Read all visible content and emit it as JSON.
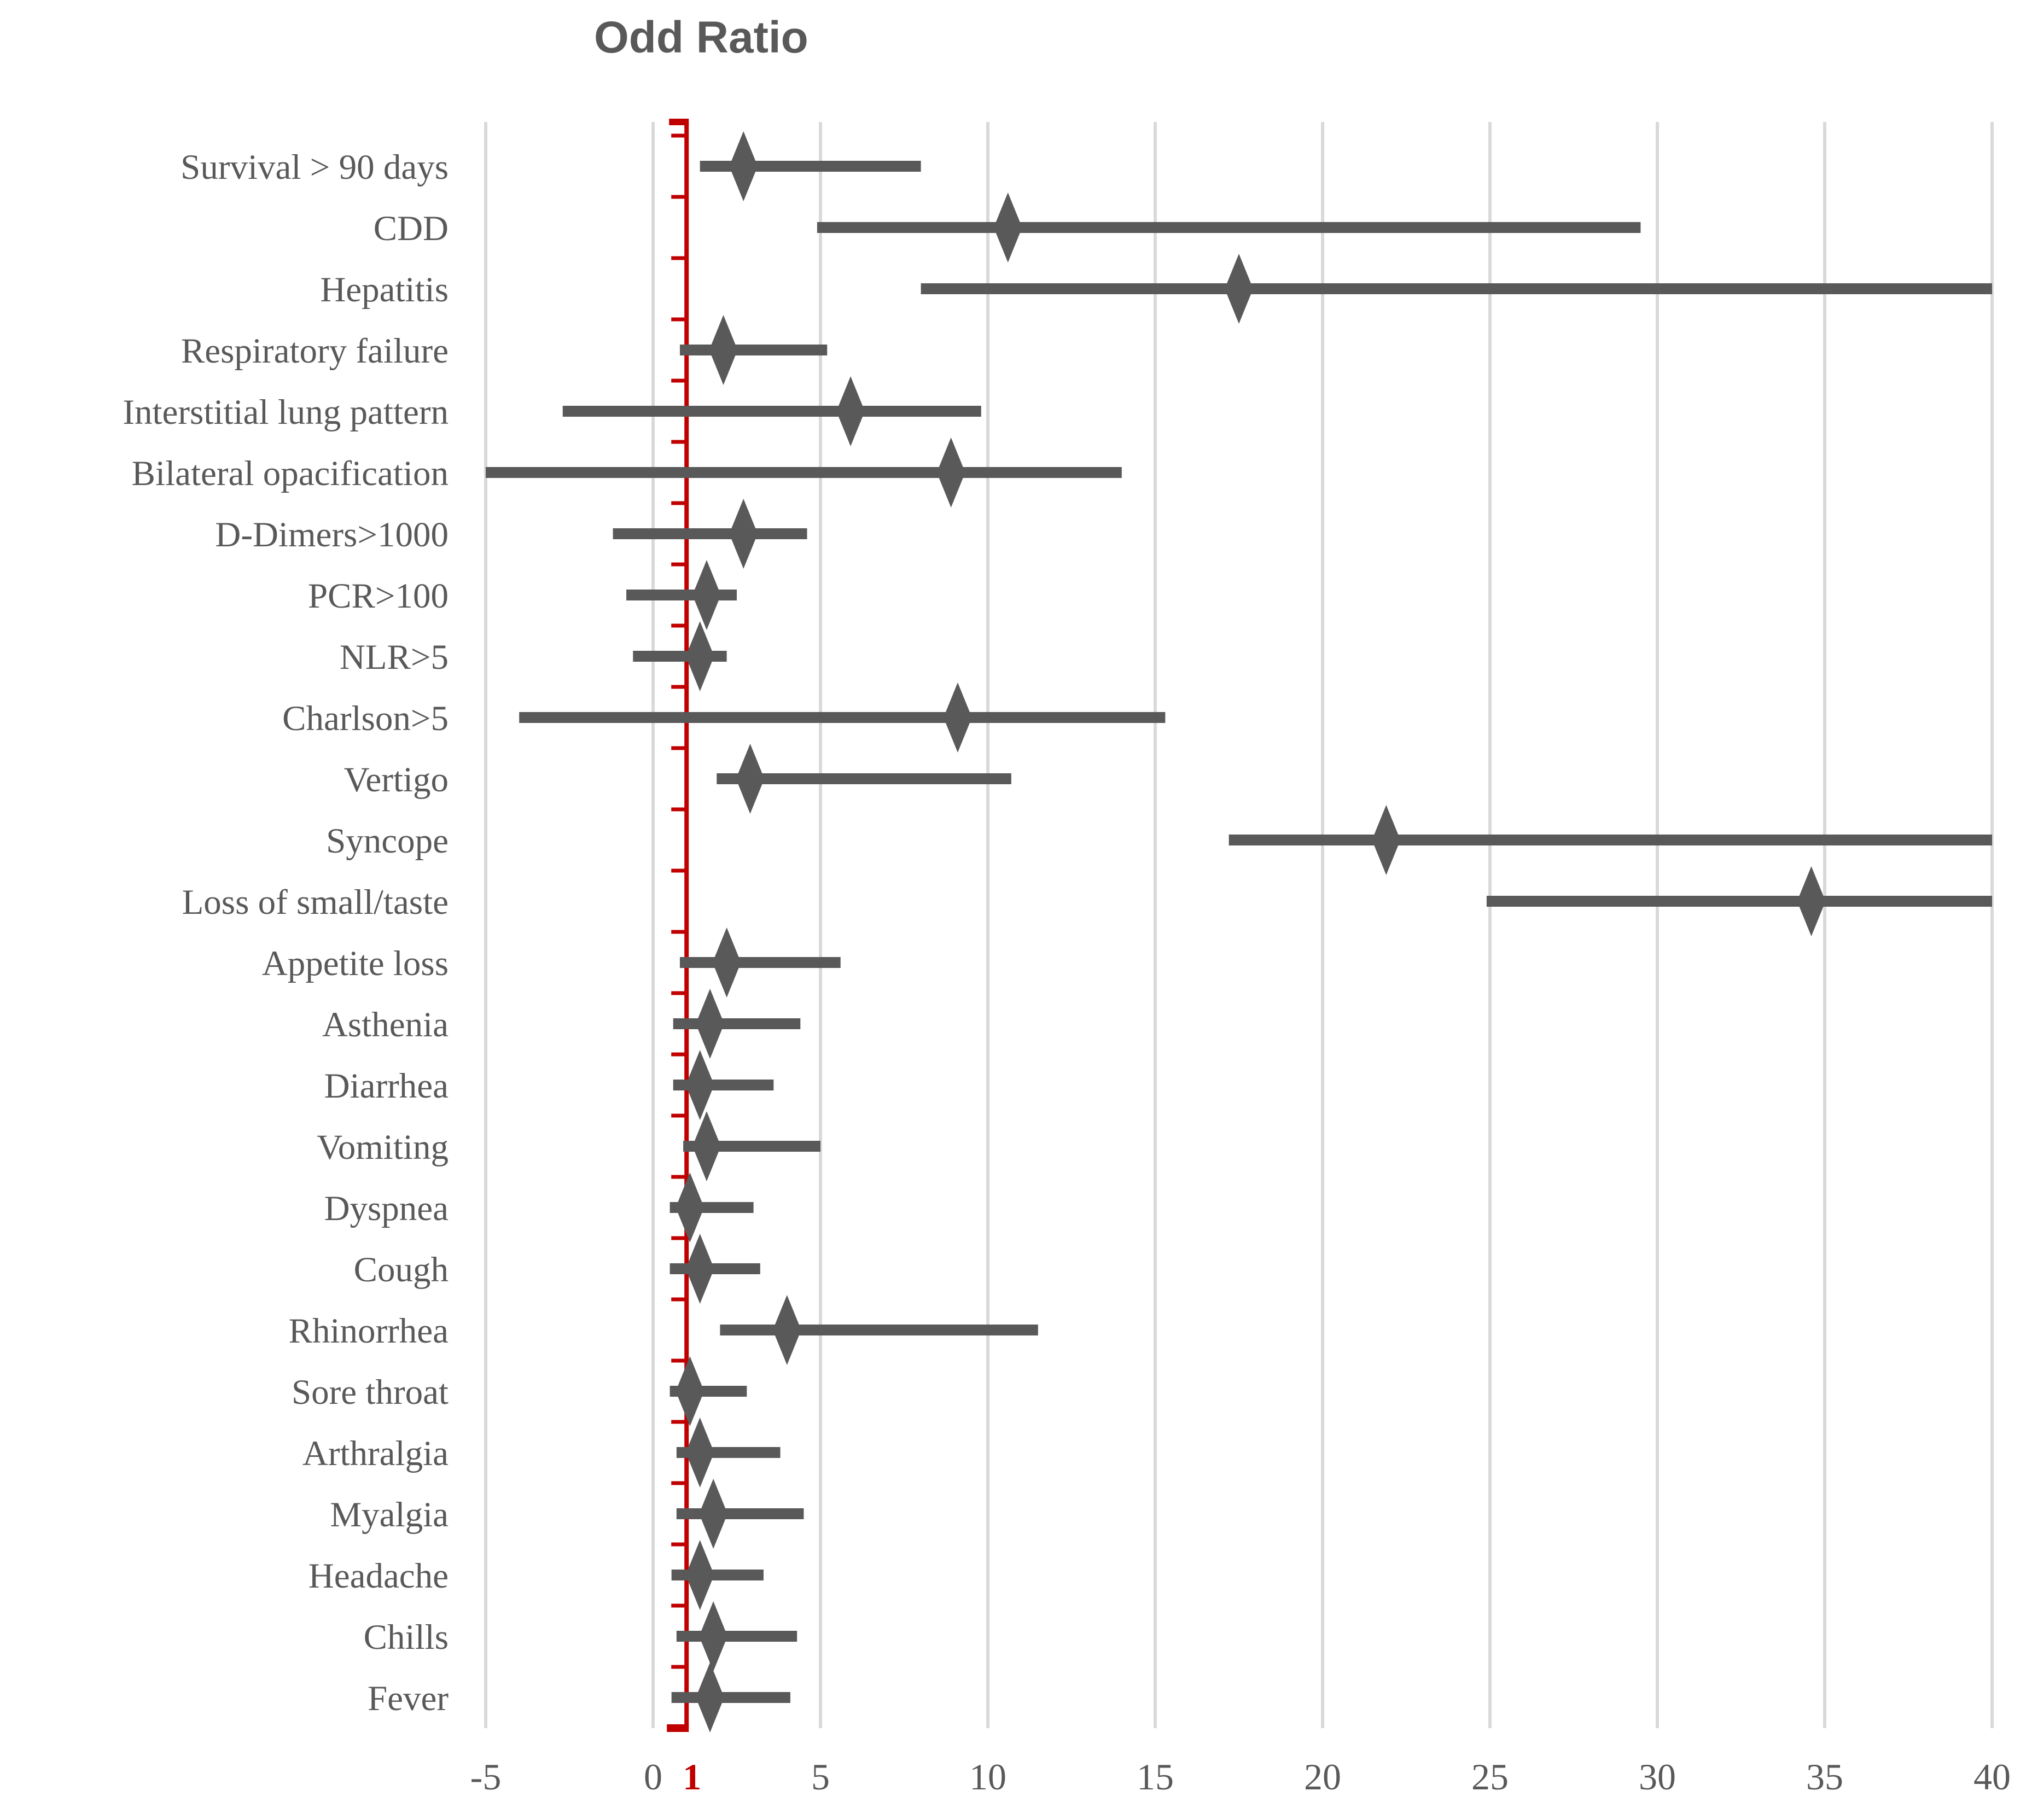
{
  "chart_data": {
    "type": "forest",
    "title": "Odd Ratio",
    "x_axis": {
      "xlim": [
        -5,
        40
      ],
      "tick_labels": [
        -5,
        0,
        1,
        5,
        10,
        15,
        20,
        25,
        30,
        35,
        40
      ],
      "gridline_ticks": [
        -5,
        0,
        5,
        10,
        15,
        20,
        25,
        30,
        35,
        40
      ],
      "highlight_tick": 1,
      "grid": "vertical-on"
    },
    "reference_line": 1,
    "legend": "none",
    "rows": [
      {
        "label": "Survival > 90 days",
        "or": 2.7,
        "ci_low": 1.4,
        "ci_high": 8.0
      },
      {
        "label": "CDD",
        "or": 10.6,
        "ci_low": 4.9,
        "ci_high": 29.5
      },
      {
        "label": "Hepatitis",
        "or": 17.5,
        "ci_low": 8.0,
        "ci_high": 40
      },
      {
        "label": "Respiratory failure",
        "or": 2.1,
        "ci_low": 0.8,
        "ci_high": 5.2
      },
      {
        "label": "Interstitial lung pattern",
        "or": 5.9,
        "ci_low": -2.7,
        "ci_high": 9.8
      },
      {
        "label": "Bilateral opacification",
        "or": 8.9,
        "ci_low": -5.0,
        "ci_high": 14.0
      },
      {
        "label": "D-Dimers>1000",
        "or": 2.7,
        "ci_low": -1.2,
        "ci_high": 4.6
      },
      {
        "label": "PCR>100",
        "or": 1.6,
        "ci_low": -0.8,
        "ci_high": 2.5
      },
      {
        "label": "NLR>5",
        "or": 1.4,
        "ci_low": -0.6,
        "ci_high": 2.2
      },
      {
        "label": "Charlson>5",
        "or": 9.1,
        "ci_low": -4.0,
        "ci_high": 15.3
      },
      {
        "label": "Vertigo",
        "or": 2.9,
        "ci_low": 1.9,
        "ci_high": 10.7
      },
      {
        "label": "Syncope",
        "or": 21.9,
        "ci_low": 17.2,
        "ci_high": 40
      },
      {
        "label": "Loss of small/taste",
        "or": 34.6,
        "ci_low": 24.9,
        "ci_high": 40
      },
      {
        "label": "Appetite loss",
        "or": 2.2,
        "ci_low": 0.8,
        "ci_high": 5.6
      },
      {
        "label": "Asthenia",
        "or": 1.7,
        "ci_low": 0.6,
        "ci_high": 4.4
      },
      {
        "label": "Diarrhea",
        "or": 1.4,
        "ci_low": 0.6,
        "ci_high": 3.6
      },
      {
        "label": "Vomiting",
        "or": 1.6,
        "ci_low": 0.9,
        "ci_high": 5.0
      },
      {
        "label": "Dyspnea",
        "or": 1.1,
        "ci_low": 0.5,
        "ci_high": 3.0
      },
      {
        "label": "Cough",
        "or": 1.4,
        "ci_low": 0.5,
        "ci_high": 3.2
      },
      {
        "label": "Rhinorrhea",
        "or": 4.0,
        "ci_low": 2.0,
        "ci_high": 11.5
      },
      {
        "label": "Sore throat",
        "or": 1.1,
        "ci_low": 0.5,
        "ci_high": 2.8
      },
      {
        "label": "Arthralgia",
        "or": 1.4,
        "ci_low": 0.7,
        "ci_high": 3.8
      },
      {
        "label": "Myalgia",
        "or": 1.8,
        "ci_low": 0.7,
        "ci_high": 4.5
      },
      {
        "label": "Headache",
        "or": 1.4,
        "ci_low": 0.55,
        "ci_high": 3.3
      },
      {
        "label": "Chills",
        "or": 1.8,
        "ci_low": 0.7,
        "ci_high": 4.3
      },
      {
        "label": "Fever",
        "or": 1.7,
        "ci_low": 0.55,
        "ci_high": 4.1
      }
    ],
    "colors": {
      "marker": "#595959",
      "ci_bar": "#595959",
      "gridline": "#D9D9D9",
      "reference_line": "#C00000",
      "text": "#595959",
      "highlight_tick_color": "#C00000"
    }
  }
}
